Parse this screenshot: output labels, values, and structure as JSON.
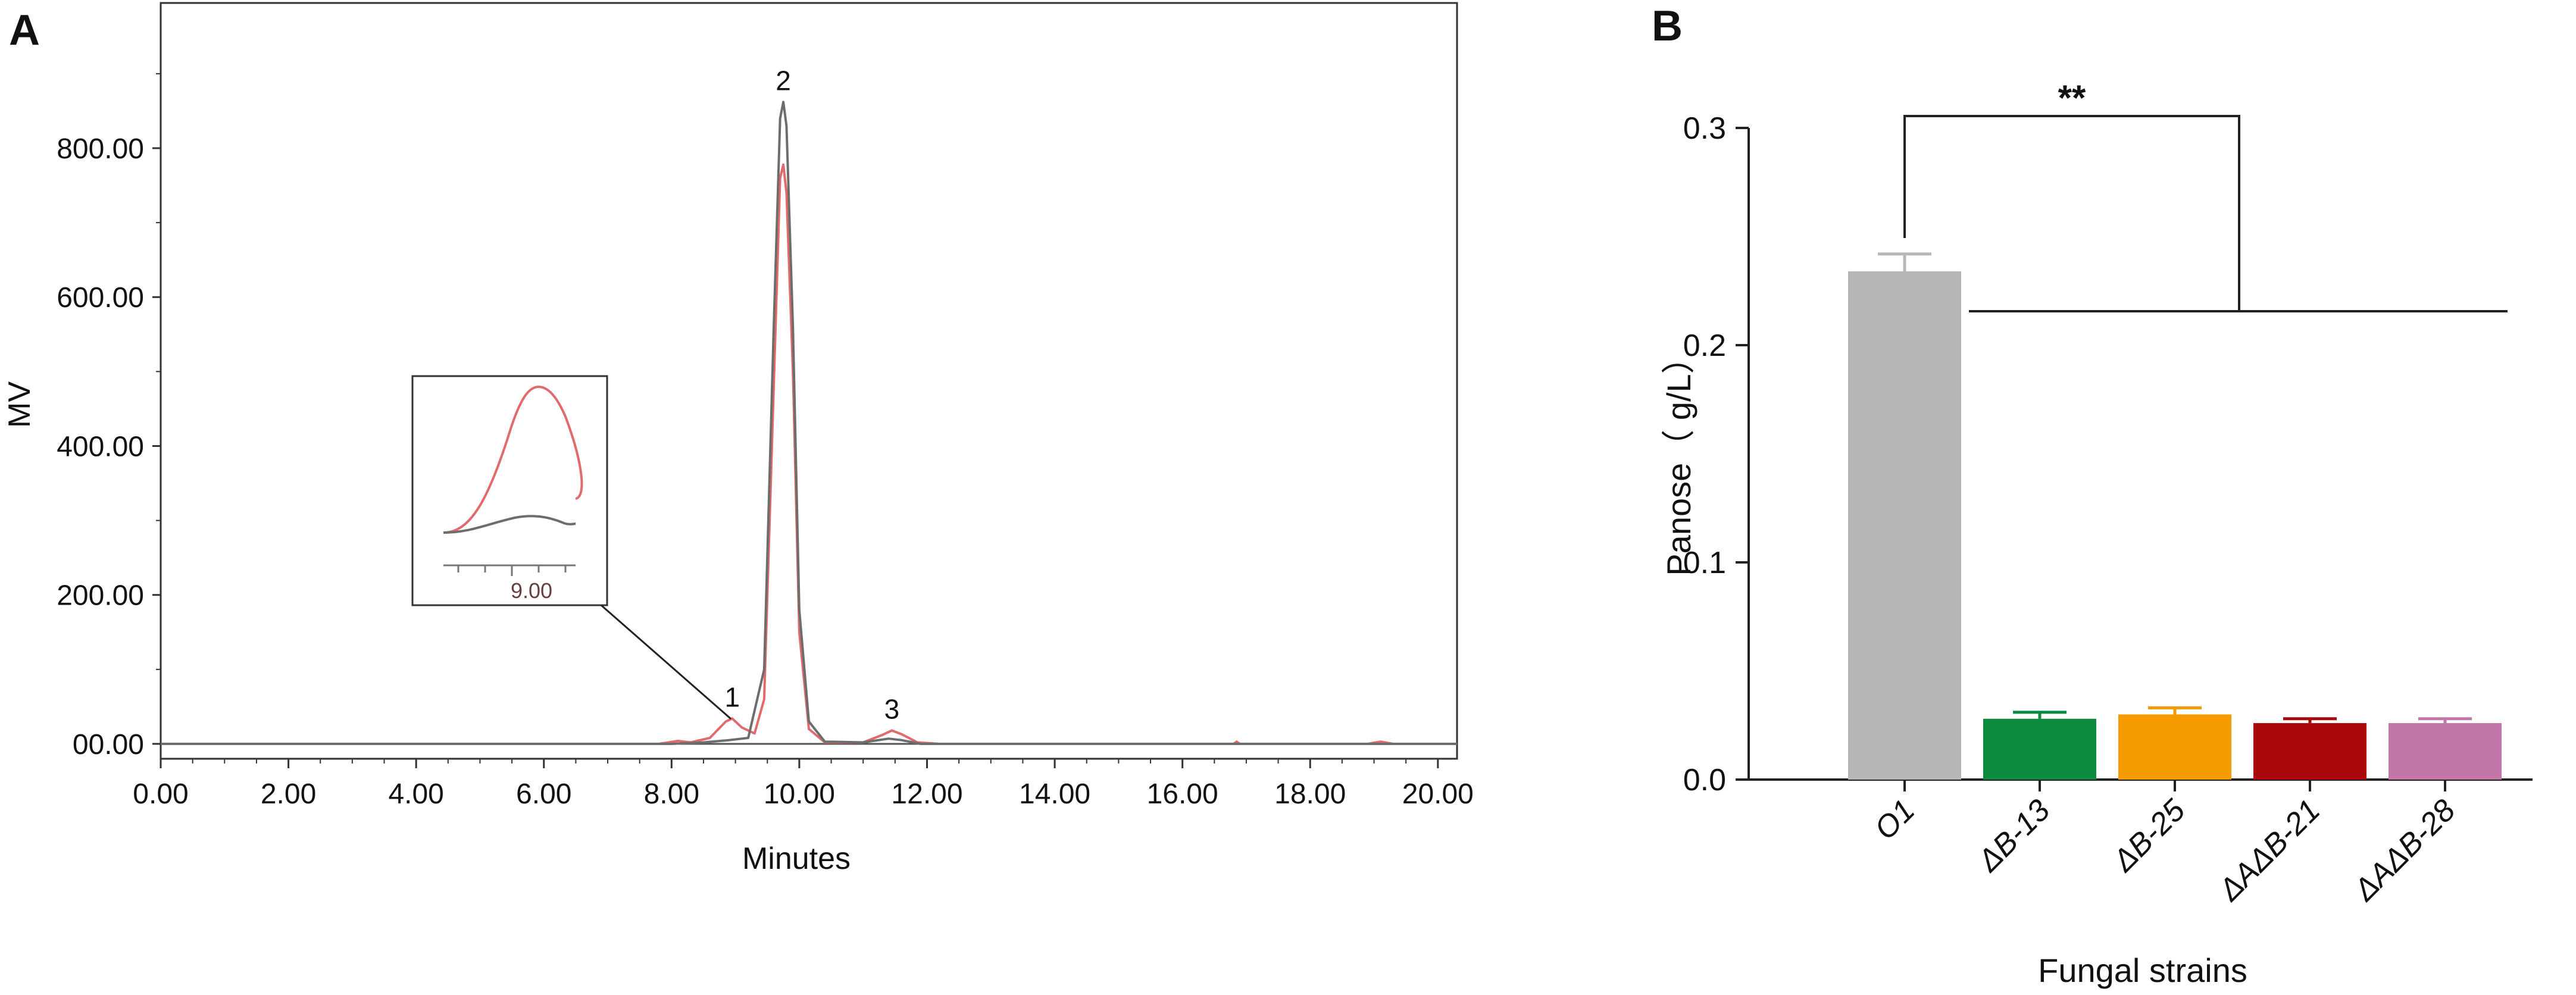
{
  "panel_a": {
    "letter": "A",
    "chart_data": {
      "type": "line",
      "xlabel": "Minutes",
      "ylabel": "MV",
      "xlim": [
        0,
        20.3
      ],
      "ylim": [
        -20,
        995
      ],
      "x_ticks": [
        "0.00",
        "2.00",
        "4.00",
        "6.00",
        "8.00",
        "10.00",
        "12.00",
        "14.00",
        "16.00",
        "18.00",
        "20.00"
      ],
      "y_ticks": [
        "00.00",
        "200.00",
        "400.00",
        "600.00",
        "800.00"
      ],
      "series": [
        {
          "color": "#e36a6a",
          "points": [
            [
              0,
              0
            ],
            [
              7.8,
              0
            ],
            [
              8.1,
              4
            ],
            [
              8.3,
              2
            ],
            [
              8.6,
              8
            ],
            [
              8.85,
              30
            ],
            [
              8.95,
              34
            ],
            [
              9.1,
              22
            ],
            [
              9.3,
              14
            ],
            [
              9.45,
              60
            ],
            [
              9.6,
              480
            ],
            [
              9.7,
              760
            ],
            [
              9.75,
              778
            ],
            [
              9.8,
              740
            ],
            [
              9.9,
              500
            ],
            [
              10.0,
              150
            ],
            [
              10.15,
              20
            ],
            [
              10.4,
              2
            ],
            [
              11.0,
              2
            ],
            [
              11.3,
              12
            ],
            [
              11.45,
              18
            ],
            [
              11.6,
              13
            ],
            [
              11.85,
              2
            ],
            [
              12.2,
              0
            ],
            [
              16.8,
              0
            ],
            [
              16.85,
              3
            ],
            [
              16.9,
              0
            ],
            [
              18.9,
              0
            ],
            [
              19.1,
              3
            ],
            [
              19.3,
              0
            ],
            [
              20.3,
              0
            ]
          ]
        },
        {
          "color": "#6d6d6d",
          "points": [
            [
              0,
              0
            ],
            [
              8.0,
              0
            ],
            [
              8.5,
              2
            ],
            [
              8.9,
              5
            ],
            [
              9.2,
              8
            ],
            [
              9.45,
              100
            ],
            [
              9.6,
              560
            ],
            [
              9.7,
              840
            ],
            [
              9.75,
              862
            ],
            [
              9.8,
              830
            ],
            [
              9.9,
              560
            ],
            [
              10.0,
              180
            ],
            [
              10.15,
              30
            ],
            [
              10.4,
              3
            ],
            [
              11.0,
              2
            ],
            [
              11.4,
              7
            ],
            [
              11.6,
              5
            ],
            [
              11.9,
              0
            ],
            [
              20.3,
              0
            ]
          ]
        }
      ],
      "peak_labels": [
        {
          "text": "1",
          "x": 8.95,
          "y": 34
        },
        {
          "text": "2",
          "x": 9.75,
          "y": 862
        },
        {
          "text": "3",
          "x": 11.45,
          "y": 18
        }
      ],
      "inset": {
        "tick_label": "9.00"
      }
    }
  },
  "panel_b": {
    "letter": "B",
    "chart_data": {
      "type": "bar",
      "xlabel": "Fungal strains",
      "ylabel": "Panose（ g/L）",
      "ylim": [
        0,
        0.3
      ],
      "y_ticks": [
        "0.0",
        "0.1",
        "0.2",
        "0.3"
      ],
      "categories": [
        "O1",
        "ΔB-13",
        "ΔB-25",
        "ΔAΔB-21",
        "ΔAΔB-28"
      ],
      "values": [
        0.234,
        0.028,
        0.03,
        0.026,
        0.026
      ],
      "errors": [
        0.008,
        0.003,
        0.003,
        0.002,
        0.002
      ],
      "colors": [
        "#b7b7b7",
        "#0d8a3e",
        "#f59a00",
        "#a8080b",
        "#c376a8"
      ],
      "significance": "**"
    }
  }
}
